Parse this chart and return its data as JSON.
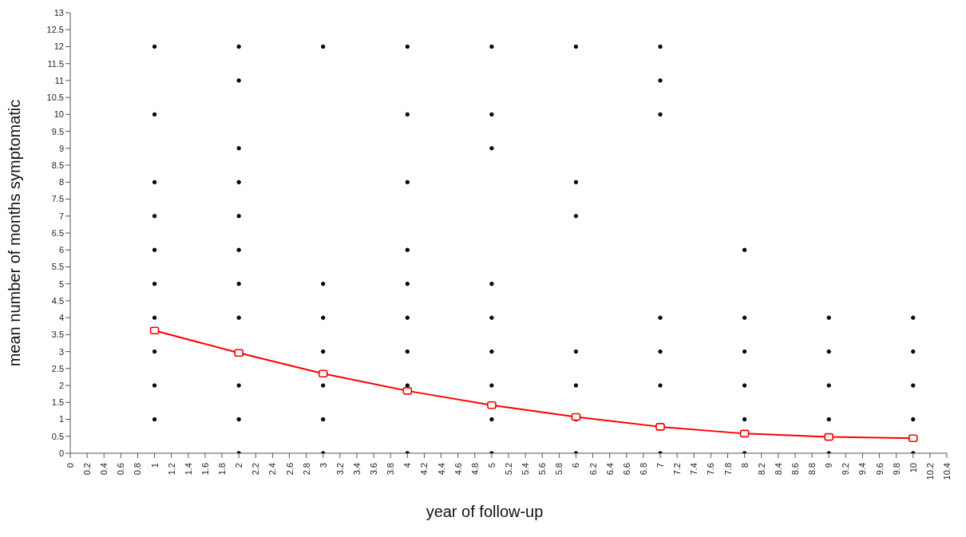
{
  "chart_data": {
    "type": "line",
    "xlabel": "year of follow-up",
    "ylabel": "mean number of months symptomatic",
    "xlim": [
      0,
      10.4
    ],
    "xticks": [
      0,
      0.2,
      0.4,
      0.6,
      0.8,
      1,
      1.2,
      1.4,
      1.6,
      1.8,
      2,
      2.2,
      2.4,
      2.6,
      2.8,
      3,
      3.2,
      3.4,
      3.6,
      3.8,
      4,
      4.2,
      4.4,
      4.6,
      4.8,
      5,
      5.2,
      5.4,
      5.6,
      5.8,
      6,
      6.2,
      6.4,
      6.6,
      6.8,
      7,
      7.2,
      7.4,
      7.6,
      7.8,
      8,
      8.2,
      8.4,
      8.6,
      8.8,
      9,
      9.2,
      9.4,
      9.6,
      9.8,
      10,
      10.2,
      10.4
    ],
    "ylim": [
      0,
      13
    ],
    "yticks": [
      0,
      0.5,
      1,
      1.5,
      2,
      2.5,
      3,
      3.5,
      4,
      4.5,
      5,
      5.5,
      6,
      6.5,
      7,
      7.5,
      8,
      8.5,
      9,
      9.5,
      10,
      10.5,
      11,
      11.5,
      12,
      12.5,
      13
    ],
    "grid": false,
    "legend": false,
    "series": [
      {
        "type": "scatter",
        "color": "#000000",
        "marker": "circle",
        "x": [
          1,
          1,
          1,
          1,
          1,
          1,
          1,
          1,
          1,
          1,
          2,
          2,
          2,
          2,
          2,
          2,
          2,
          2,
          2,
          2,
          2,
          3,
          3,
          3,
          3,
          3,
          3,
          3,
          4,
          4,
          4,
          4,
          4,
          4,
          4,
          4,
          4,
          5,
          5,
          5,
          5,
          5,
          5,
          5,
          5,
          5,
          6,
          6,
          6,
          6,
          6,
          6,
          6,
          7,
          7,
          7,
          7,
          7,
          7,
          7,
          8,
          8,
          8,
          8,
          8,
          8,
          9,
          9,
          9,
          9,
          9,
          10,
          10,
          10,
          10,
          10
        ],
        "values": [
          12,
          10,
          8,
          7,
          6,
          5,
          4,
          3,
          2,
          1,
          12,
          11,
          9,
          8,
          7,
          6,
          5,
          4,
          2,
          1,
          0,
          12,
          5,
          4,
          3,
          2,
          1,
          0,
          12,
          10,
          8,
          6,
          5,
          4,
          3,
          2,
          0,
          12,
          10,
          9,
          5,
          4,
          3,
          2,
          1,
          0,
          12,
          8,
          7,
          3,
          2,
          1,
          0,
          12,
          11,
          10,
          4,
          3,
          2,
          0,
          6,
          4,
          3,
          2,
          1,
          0,
          4,
          3,
          2,
          1,
          0,
          4,
          3,
          2,
          1,
          0
        ]
      },
      {
        "color": "#ff0000",
        "marker": "square",
        "x": [
          1,
          2,
          3,
          4,
          5,
          6,
          7,
          8,
          9,
          10
        ],
        "values": [
          3.62,
          2.96,
          2.35,
          1.84,
          1.42,
          1.07,
          0.78,
          0.58,
          0.48,
          0.44
        ]
      }
    ]
  }
}
